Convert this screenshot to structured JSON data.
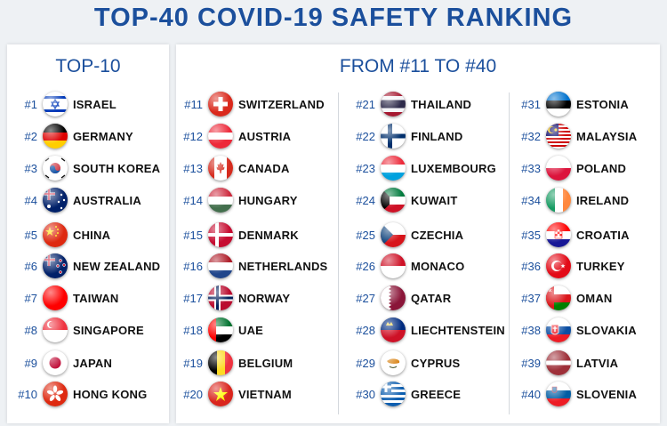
{
  "title": "TOP-40 COVID-19 SAFETY RANKING",
  "left": {
    "heading": "TOP-10",
    "items": [
      {
        "rank": "#1",
        "country": "ISRAEL",
        "flag": "israel-flag-icon"
      },
      {
        "rank": "#2",
        "country": "GERMANY",
        "flag": "germany-flag-icon"
      },
      {
        "rank": "#3",
        "country": "SOUTH KOREA",
        "flag": "south-korea-flag-icon"
      },
      {
        "rank": "#4",
        "country": "AUSTRALIA",
        "flag": "australia-flag-icon"
      },
      {
        "rank": "#5",
        "country": "CHINA",
        "flag": "china-flag-icon"
      },
      {
        "rank": "#6",
        "country": "NEW ZEALAND",
        "flag": "new-zealand-flag-icon"
      },
      {
        "rank": "#7",
        "country": "TAIWAN",
        "flag": "taiwan-flag-icon"
      },
      {
        "rank": "#8",
        "country": "SINGAPORE",
        "flag": "singapore-flag-icon"
      },
      {
        "rank": "#9",
        "country": "JAPAN",
        "flag": "japan-flag-icon"
      },
      {
        "rank": "#10",
        "country": "HONG KONG",
        "flag": "hong-kong-flag-icon"
      }
    ]
  },
  "right": {
    "heading": "FROM #11 TO #40",
    "columns": [
      [
        {
          "rank": "#11",
          "country": "SWITZERLAND",
          "flag": "switzerland-flag-icon"
        },
        {
          "rank": "#12",
          "country": "AUSTRIA",
          "flag": "austria-flag-icon"
        },
        {
          "rank": "#13",
          "country": "CANADA",
          "flag": "canada-flag-icon"
        },
        {
          "rank": "#14",
          "country": "HUNGARY",
          "flag": "hungary-flag-icon"
        },
        {
          "rank": "#15",
          "country": "DENMARK",
          "flag": "denmark-flag-icon"
        },
        {
          "rank": "#16",
          "country": "NETHERLANDS",
          "flag": "netherlands-flag-icon"
        },
        {
          "rank": "#17",
          "country": "NORWAY",
          "flag": "norway-flag-icon"
        },
        {
          "rank": "#18",
          "country": "UAE",
          "flag": "uae-flag-icon"
        },
        {
          "rank": "#19",
          "country": "BELGIUM",
          "flag": "belgium-flag-icon"
        },
        {
          "rank": "#20",
          "country": "VIETNAM",
          "flag": "vietnam-flag-icon"
        }
      ],
      [
        {
          "rank": "#21",
          "country": "THAILAND",
          "flag": "thailand-flag-icon"
        },
        {
          "rank": "#22",
          "country": "FINLAND",
          "flag": "finland-flag-icon"
        },
        {
          "rank": "#23",
          "country": "LUXEMBOURG",
          "flag": "luxembourg-flag-icon"
        },
        {
          "rank": "#24",
          "country": "KUWAIT",
          "flag": "kuwait-flag-icon"
        },
        {
          "rank": "#25",
          "country": "CZECHIA",
          "flag": "czechia-flag-icon"
        },
        {
          "rank": "#26",
          "country": "MONACO",
          "flag": "monaco-flag-icon"
        },
        {
          "rank": "#27",
          "country": "QATAR",
          "flag": "qatar-flag-icon"
        },
        {
          "rank": "#28",
          "country": "LIECHTENSTEIN",
          "flag": "liechtenstein-flag-icon"
        },
        {
          "rank": "#29",
          "country": "CYPRUS",
          "flag": "cyprus-flag-icon"
        },
        {
          "rank": "#30",
          "country": "GREECE",
          "flag": "greece-flag-icon"
        }
      ],
      [
        {
          "rank": "#31",
          "country": "ESTONIA",
          "flag": "estonia-flag-icon"
        },
        {
          "rank": "#32",
          "country": "MALAYSIA",
          "flag": "malaysia-flag-icon"
        },
        {
          "rank": "#33",
          "country": "POLAND",
          "flag": "poland-flag-icon"
        },
        {
          "rank": "#34",
          "country": "IRELAND",
          "flag": "ireland-flag-icon"
        },
        {
          "rank": "#35",
          "country": "CROATIA",
          "flag": "croatia-flag-icon"
        },
        {
          "rank": "#36",
          "country": "TURKEY",
          "flag": "turkey-flag-icon"
        },
        {
          "rank": "#37",
          "country": "OMAN",
          "flag": "oman-flag-icon"
        },
        {
          "rank": "#38",
          "country": "SLOVAKIA",
          "flag": "slovakia-flag-icon"
        },
        {
          "rank": "#39",
          "country": "LATVIA",
          "flag": "latvia-flag-icon"
        },
        {
          "rank": "#40",
          "country": "SLOVENIA",
          "flag": "slovenia-flag-icon"
        }
      ]
    ]
  },
  "colors": {
    "title": "#1b4f9c",
    "rank": "#1b4f9c",
    "text": "#111111"
  }
}
